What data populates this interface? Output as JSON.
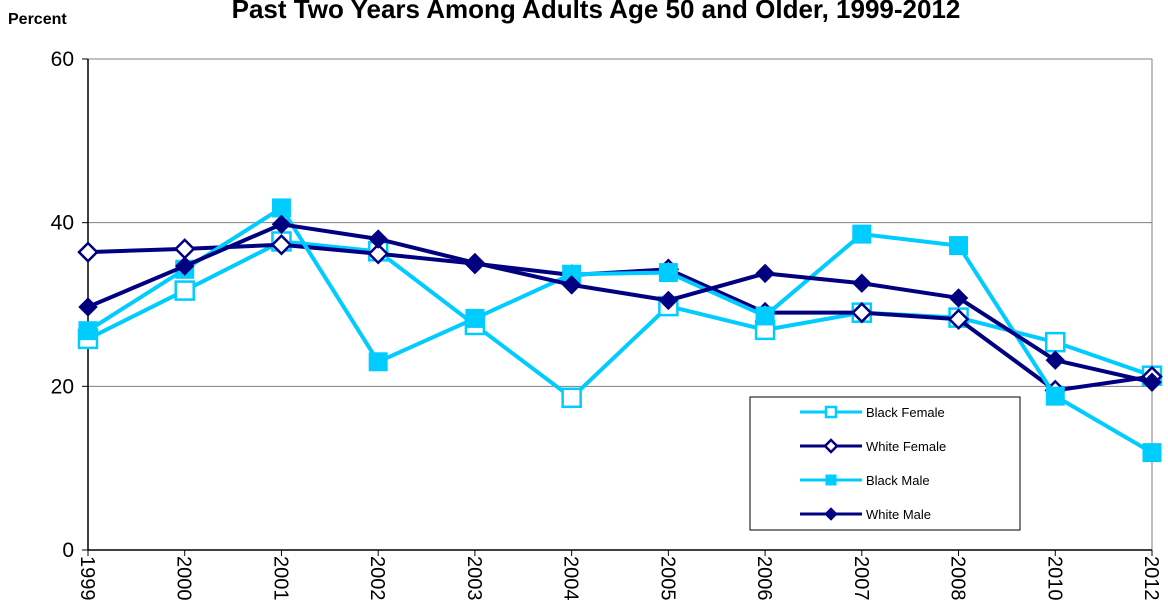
{
  "chart_data": {
    "type": "line",
    "title": "Past Two Years Among Adults Age 50 and Older, 1999-2012",
    "ylabel": "Percent",
    "xlabel": "",
    "categories": [
      "1999",
      "2000",
      "2001",
      "2002",
      "2003",
      "2004",
      "2005",
      "2006",
      "2007",
      "2008",
      "2010",
      "2012"
    ],
    "ylim": [
      0,
      60
    ],
    "yticks": [
      0,
      20,
      40,
      60
    ],
    "grid": "horizontal",
    "legend_position": "lower-right",
    "series": [
      {
        "name": "Black Female",
        "color": "#00ccff",
        "marker": "open-square",
        "values": [
          25.8,
          31.7,
          37.7,
          36.5,
          27.5,
          18.6,
          29.8,
          26.9,
          29.0,
          28.4,
          25.4,
          21.3
        ]
      },
      {
        "name": "White Female",
        "color": "#000080",
        "marker": "open-diamond",
        "values": [
          36.4,
          36.8,
          37.3,
          36.2,
          35.0,
          33.6,
          34.3,
          29.0,
          29.0,
          28.2,
          19.5,
          21.2
        ]
      },
      {
        "name": "Black Male",
        "color": "#00ccff",
        "marker": "filled-square",
        "values": [
          26.8,
          34.3,
          41.8,
          23.0,
          28.3,
          33.7,
          33.9,
          28.6,
          38.6,
          37.2,
          18.8,
          11.9
        ]
      },
      {
        "name": "White Male",
        "color": "#000080",
        "marker": "filled-diamond",
        "values": [
          29.7,
          34.7,
          39.8,
          38.0,
          35.1,
          32.4,
          30.5,
          33.8,
          32.6,
          30.8,
          23.2,
          20.5
        ]
      }
    ]
  }
}
